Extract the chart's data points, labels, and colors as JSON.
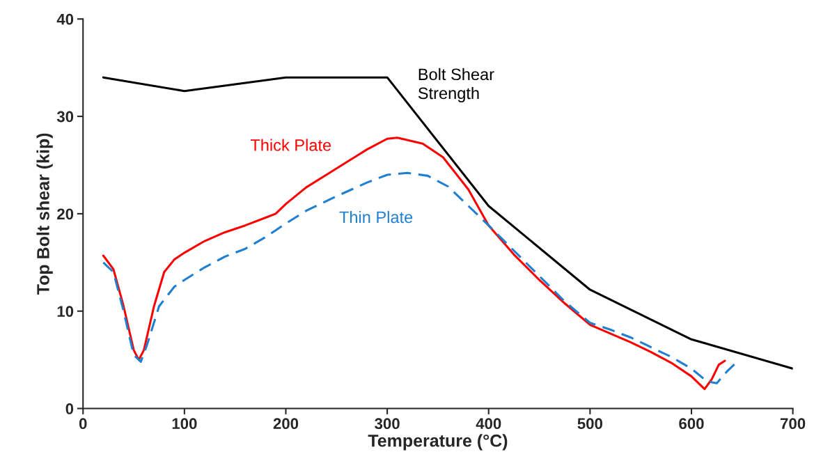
{
  "chart_data": {
    "type": "line",
    "xlabel": "Temperature (°C)",
    "ylabel": "Top Bolt shear (kip)",
    "xlim": [
      0,
      700
    ],
    "xticks": [
      0,
      100,
      200,
      300,
      400,
      500,
      600,
      700
    ],
    "ylim": [
      0,
      40
    ],
    "yticks": [
      0,
      10,
      20,
      30,
      40
    ],
    "grid": false,
    "legend": false,
    "marker": "none",
    "series": [
      {
        "name": "Bolt Shear\nStrength",
        "color": "#000000",
        "line_style": "solid",
        "x": [
          20,
          100,
          200,
          300,
          400,
          500,
          600,
          700
        ],
        "values": [
          34,
          32.6,
          34,
          34,
          20.8,
          12.2,
          7.1,
          4.1
        ]
      },
      {
        "name": "Thick Plate",
        "color": "#ff0000",
        "line_style": "solid",
        "x": [
          20,
          30,
          40,
          50,
          55,
          60,
          70,
          80,
          90,
          100,
          120,
          140,
          160,
          180,
          190,
          200,
          220,
          240,
          260,
          280,
          300,
          310,
          335,
          355,
          380,
          400,
          425,
          450,
          475,
          500,
          520,
          540,
          560,
          580,
          600,
          613,
          620,
          627,
          633
        ],
        "values": [
          15.7,
          14.3,
          10.5,
          6,
          5,
          6,
          10.5,
          14,
          15.3,
          16,
          17.2,
          18.1,
          18.8,
          19.6,
          20,
          21,
          22.7,
          24,
          25.3,
          26.6,
          27.7,
          27.8,
          27.2,
          25.8,
          22.5,
          18.8,
          15.8,
          13.2,
          10.8,
          8.6,
          7.7,
          6.8,
          5.8,
          4.7,
          3.3,
          2,
          3,
          4.5,
          4.9
        ]
      },
      {
        "name": "Thin Plate",
        "color": "#1f7fd0",
        "line_style": "dashed",
        "x": [
          20,
          30,
          40,
          50,
          57,
          63,
          75,
          90,
          100,
          120,
          140,
          160,
          180,
          200,
          220,
          250,
          280,
          300,
          320,
          340,
          360,
          380,
          400,
          425,
          450,
          475,
          500,
          520,
          540,
          560,
          580,
          600,
          615,
          625,
          635,
          645
        ],
        "values": [
          15,
          14,
          10,
          5.5,
          4.8,
          6.5,
          10.5,
          12.5,
          13.2,
          14.5,
          15.6,
          16.4,
          17.6,
          19,
          20.3,
          21.8,
          23.2,
          24,
          24.2,
          23.9,
          22.8,
          20.8,
          18.8,
          16.2,
          13.6,
          11,
          8.8,
          8.1,
          7.3,
          6.3,
          5.3,
          4.1,
          2.8,
          2.6,
          3.8,
          4.8
        ]
      }
    ]
  }
}
